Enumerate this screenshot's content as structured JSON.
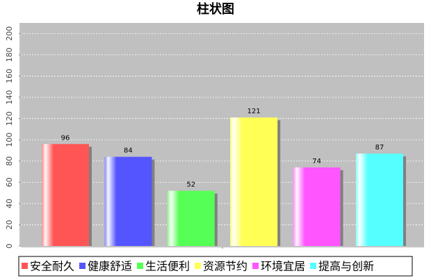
{
  "chart_data": {
    "type": "bar",
    "title": "柱状图",
    "categories": [
      null
    ],
    "series": [
      {
        "name": "安全耐久",
        "color": "#ff5555",
        "values": [
          96
        ]
      },
      {
        "name": "健康舒适",
        "color": "#5555ff",
        "values": [
          84
        ]
      },
      {
        "name": "生活便利",
        "color": "#55ff55",
        "values": [
          52
        ]
      },
      {
        "name": "资源节约",
        "color": "#ffff55",
        "values": [
          121
        ]
      },
      {
        "name": "环境宜居",
        "color": "#ff55ff",
        "values": [
          74
        ]
      },
      {
        "name": "提高与创新",
        "color": "#55ffff",
        "values": [
          87
        ]
      }
    ],
    "ylim": [
      0,
      210
    ],
    "yticks": [
      0,
      20,
      40,
      60,
      80,
      100,
      120,
      140,
      160,
      180,
      200
    ],
    "grid": true,
    "legend": "bottom"
  }
}
